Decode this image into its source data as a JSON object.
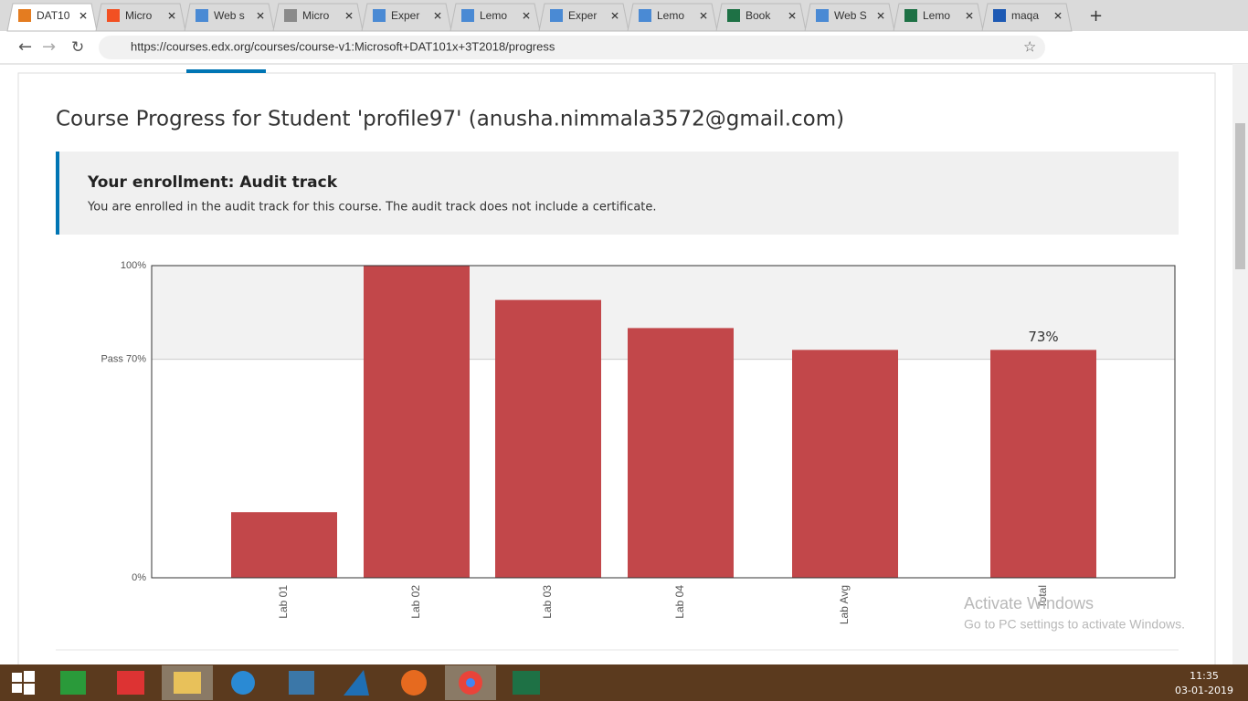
{
  "browser": {
    "tabs": [
      "DAT10",
      "Micro",
      "Web s",
      "Micro",
      "Exper",
      "Lemo",
      "Exper",
      "Lemo",
      "Book",
      "Web S",
      "Lemo",
      "maqa"
    ],
    "url": "https://courses.edx.org/courses/course-v1:Microsoft+DAT101x+3T2018/progress"
  },
  "page": {
    "title": "Course Progress for Student 'profile97' (anusha.nimmala3572@gmail.com)",
    "enrollment": {
      "heading": "Your enrollment: Audit track",
      "text": "You are enrolled in the audit track for this course. The audit track does not include a certificate."
    }
  },
  "chart_data": {
    "type": "bar",
    "categories": [
      "Lab 01",
      "Lab 02",
      "Lab 03",
      "Lab 04",
      "Lab Avg",
      "Total"
    ],
    "values": [
      21,
      100,
      89,
      80,
      73,
      73
    ],
    "value_labels": [
      null,
      null,
      null,
      null,
      null,
      "73%"
    ],
    "color": "#c2474a",
    "ylim": [
      0,
      100
    ],
    "yticks": [
      {
        "value": 0,
        "label": "0%"
      },
      {
        "value": 70,
        "label": "Pass 70%"
      },
      {
        "value": 100,
        "label": "100%"
      }
    ]
  },
  "watermark": {
    "title": "Activate Windows",
    "text": "Go to PC settings to activate Windows."
  },
  "taskbar": {
    "time": "11:35",
    "date": "03-01-2019"
  }
}
